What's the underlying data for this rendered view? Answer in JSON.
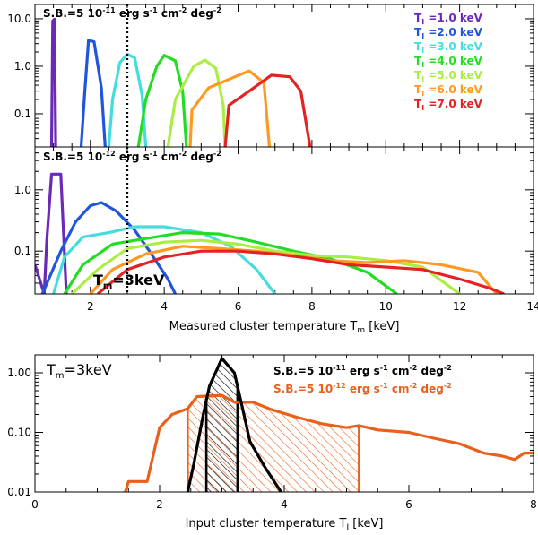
{
  "chart_data": [
    {
      "type": "line",
      "panel": "top",
      "annotation": "S.B.=5 10^-11 erg s^-1 cm^-2 deg^-2",
      "xlim": [
        0.5,
        14
      ],
      "yscale": "log",
      "ylim": [
        0.02,
        20
      ],
      "yticks": [
        {
          "v": 10,
          "label": "10.0"
        },
        {
          "v": 1,
          "label": "1.0"
        },
        {
          "v": 0.1,
          "label": "0.1"
        }
      ],
      "vline_x": 3,
      "legend_position": "top-right",
      "series": [
        {
          "name": "T_I =1.0 keV",
          "label": "T",
          "sub": "I",
          "suffix": " =1.0 keV",
          "color": "#6a2ab5",
          "points": [
            [
              0.95,
              0.02
            ],
            [
              0.98,
              9.0
            ],
            [
              1.03,
              9.8
            ],
            [
              1.06,
              0.02
            ]
          ]
        },
        {
          "name": "T_I =2.0 keV",
          "label": "T",
          "sub": "I",
          "suffix": " =2.0 keV",
          "color": "#2255dd",
          "points": [
            [
              1.75,
              0.02
            ],
            [
              1.85,
              0.3
            ],
            [
              1.95,
              3.5
            ],
            [
              2.1,
              3.3
            ],
            [
              2.3,
              0.35
            ],
            [
              2.4,
              0.02
            ]
          ]
        },
        {
          "name": "T_I =3.0 keV",
          "label": "T",
          "sub": "I",
          "suffix": " =3.0 keV",
          "color": "#44dddd",
          "points": [
            [
              2.5,
              0.02
            ],
            [
              2.6,
              0.2
            ],
            [
              2.8,
              1.2
            ],
            [
              3.0,
              1.8
            ],
            [
              3.2,
              1.5
            ],
            [
              3.4,
              0.25
            ],
            [
              3.5,
              0.02
            ]
          ]
        },
        {
          "name": "T_I =4.0 keV",
          "label": "T",
          "sub": "I",
          "suffix": " =4.0 keV",
          "color": "#22dd22",
          "points": [
            [
              3.3,
              0.02
            ],
            [
              3.5,
              0.2
            ],
            [
              3.8,
              1.0
            ],
            [
              4.0,
              1.7
            ],
            [
              4.3,
              1.3
            ],
            [
              4.5,
              0.3
            ],
            [
              4.6,
              0.02
            ]
          ]
        },
        {
          "name": "T_I =5.0 keV",
          "label": "T",
          "sub": "I",
          "suffix": " =5.0 keV",
          "color": "#aaee44",
          "points": [
            [
              4.1,
              0.02
            ],
            [
              4.3,
              0.2
            ],
            [
              4.8,
              1.0
            ],
            [
              5.1,
              1.35
            ],
            [
              5.4,
              0.9
            ],
            [
              5.6,
              0.15
            ],
            [
              5.65,
              0.02
            ]
          ]
        },
        {
          "name": "T_I =6.0 keV",
          "label": "T",
          "sub": "I",
          "suffix": " =6.0 keV",
          "color": "#ff9922",
          "points": [
            [
              4.7,
              0.02
            ],
            [
              4.75,
              0.12
            ],
            [
              5.2,
              0.35
            ],
            [
              5.8,
              0.55
            ],
            [
              6.3,
              0.8
            ],
            [
              6.7,
              0.45
            ],
            [
              6.85,
              0.02
            ]
          ]
        },
        {
          "name": "T_I =7.0 keV",
          "label": "T",
          "sub": "I",
          "suffix": " =7.0 keV",
          "color": "#e52222",
          "points": [
            [
              5.65,
              0.02
            ],
            [
              5.75,
              0.15
            ],
            [
              6.3,
              0.3
            ],
            [
              6.9,
              0.65
            ],
            [
              7.4,
              0.6
            ],
            [
              7.7,
              0.3
            ],
            [
              7.95,
              0.02
            ]
          ]
        }
      ]
    },
    {
      "type": "line",
      "panel": "middle",
      "annotation": "S.B.=5 10^-12 erg s^-1 cm^-2 deg^-2",
      "xlabel": "Measured cluster temperature T_m [keV]",
      "xlim": [
        0.5,
        14
      ],
      "xticks": [
        2,
        4,
        6,
        8,
        10,
        12,
        14
      ],
      "yscale": "log",
      "ylim": [
        0.02,
        5
      ],
      "yticks": [
        {
          "v": 1,
          "label": "1.0"
        },
        {
          "v": 0.1,
          "label": "0.1"
        }
      ],
      "vline_x": 3,
      "label": "T_m=3keV",
      "series": [
        {
          "name": "T_I =1.0 keV",
          "color": "#6a2ab5",
          "points": [
            [
              0.5,
              0.06
            ],
            [
              0.75,
              0.02
            ],
            [
              0.82,
              0.15
            ],
            [
              0.95,
              1.8
            ],
            [
              1.2,
              1.8
            ],
            [
              1.35,
              0.02
            ]
          ]
        },
        {
          "name": "T_I =2.0 keV",
          "color": "#2255dd",
          "points": [
            [
              0.7,
              0.02
            ],
            [
              1.2,
              0.1
            ],
            [
              1.6,
              0.3
            ],
            [
              2.0,
              0.55
            ],
            [
              2.3,
              0.62
            ],
            [
              2.7,
              0.45
            ],
            [
              3.2,
              0.22
            ],
            [
              3.6,
              0.1
            ],
            [
              4.1,
              0.035
            ],
            [
              4.3,
              0.02
            ]
          ]
        },
        {
          "name": "T_I =3.0 keV",
          "color": "#44dddd",
          "points": [
            [
              1.0,
              0.02
            ],
            [
              1.3,
              0.08
            ],
            [
              1.8,
              0.17
            ],
            [
              2.5,
              0.2
            ],
            [
              3.2,
              0.25
            ],
            [
              4.0,
              0.25
            ],
            [
              5.0,
              0.2
            ],
            [
              5.8,
              0.12
            ],
            [
              6.5,
              0.05
            ],
            [
              7.0,
              0.02
            ]
          ]
        },
        {
          "name": "T_I =4.0 keV",
          "color": "#22dd22",
          "points": [
            [
              1.3,
              0.02
            ],
            [
              1.8,
              0.06
            ],
            [
              2.6,
              0.13
            ],
            [
              3.5,
              0.16
            ],
            [
              4.5,
              0.2
            ],
            [
              5.5,
              0.19
            ],
            [
              6.5,
              0.14
            ],
            [
              7.5,
              0.1
            ],
            [
              8.5,
              0.075
            ],
            [
              9.5,
              0.045
            ],
            [
              10.3,
              0.02
            ]
          ]
        },
        {
          "name": "T_I =5.0 keV",
          "color": "#aaee44",
          "points": [
            [
              1.5,
              0.02
            ],
            [
              2.2,
              0.05
            ],
            [
              3.0,
              0.11
            ],
            [
              4.0,
              0.14
            ],
            [
              5.0,
              0.15
            ],
            [
              6.0,
              0.13
            ],
            [
              7.0,
              0.1
            ],
            [
              8.0,
              0.085
            ],
            [
              9.0,
              0.08
            ],
            [
              10.0,
              0.07
            ],
            [
              11.0,
              0.055
            ],
            [
              12.0,
              0.02
            ]
          ]
        },
        {
          "name": "T_I =6.0 keV",
          "color": "#ff9922",
          "points": [
            [
              2.0,
              0.02
            ],
            [
              2.6,
              0.05
            ],
            [
              3.5,
              0.09
            ],
            [
              4.5,
              0.12
            ],
            [
              5.5,
              0.11
            ],
            [
              6.5,
              0.1
            ],
            [
              7.5,
              0.085
            ],
            [
              8.5,
              0.07
            ],
            [
              9.5,
              0.065
            ],
            [
              10.5,
              0.07
            ],
            [
              11.5,
              0.06
            ],
            [
              12.5,
              0.045
            ],
            [
              13.0,
              0.02
            ]
          ]
        },
        {
          "name": "T_I =7.0 keV",
          "color": "#e52222",
          "points": [
            [
              2.2,
              0.02
            ],
            [
              3.0,
              0.05
            ],
            [
              4.0,
              0.08
            ],
            [
              5.0,
              0.1
            ],
            [
              6.0,
              0.1
            ],
            [
              7.0,
              0.09
            ],
            [
              8.0,
              0.075
            ],
            [
              9.0,
              0.06
            ],
            [
              10.0,
              0.055
            ],
            [
              11.0,
              0.05
            ],
            [
              12.0,
              0.035
            ],
            [
              12.8,
              0.025
            ],
            [
              13.2,
              0.02
            ]
          ]
        }
      ]
    },
    {
      "type": "area",
      "panel": "bottom",
      "title": "T_m=3keV",
      "xlabel": "Input cluster temperature T_I [keV]",
      "xlim": [
        0,
        8
      ],
      "xticks": [
        0,
        2,
        4,
        6,
        8
      ],
      "yscale": "log",
      "ylim": [
        0.01,
        2
      ],
      "yticks": [
        {
          "v": 1,
          "label": "1.00"
        },
        {
          "v": 0.1,
          "label": "0.10"
        },
        {
          "v": 0.01,
          "label": "0.01"
        }
      ],
      "legend_position": "top-right",
      "series": [
        {
          "name": "S.B.=5 10^-11 erg s^-1 cm^-2 deg^-2",
          "color": "#000000",
          "hatch_x": [
            2.75,
            3.25
          ],
          "points": [
            [
              2.45,
              0.01
            ],
            [
              2.55,
              0.03
            ],
            [
              2.7,
              0.2
            ],
            [
              2.8,
              0.6
            ],
            [
              3.0,
              1.75
            ],
            [
              3.2,
              1.0
            ],
            [
              3.3,
              0.35
            ],
            [
              3.45,
              0.07
            ],
            [
              3.7,
              0.025
            ],
            [
              3.9,
              0.012
            ],
            [
              3.95,
              0.01
            ]
          ]
        },
        {
          "name": "S.B.=5 10^-12 erg s^-1 cm^-2 deg^-2",
          "color": "#e8601c",
          "hatch_x": [
            2.45,
            5.2
          ],
          "points": [
            [
              1.45,
              0.01
            ],
            [
              1.5,
              0.015
            ],
            [
              1.8,
              0.015
            ],
            [
              2.0,
              0.12
            ],
            [
              2.2,
              0.2
            ],
            [
              2.45,
              0.25
            ],
            [
              2.6,
              0.4
            ],
            [
              3.0,
              0.42
            ],
            [
              3.2,
              0.32
            ],
            [
              3.5,
              0.32
            ],
            [
              3.8,
              0.24
            ],
            [
              4.2,
              0.18
            ],
            [
              4.6,
              0.14
            ],
            [
              5.0,
              0.12
            ],
            [
              5.2,
              0.13
            ],
            [
              5.5,
              0.11
            ],
            [
              6.0,
              0.1
            ],
            [
              6.4,
              0.08
            ],
            [
              6.8,
              0.065
            ],
            [
              7.2,
              0.045
            ],
            [
              7.5,
              0.04
            ],
            [
              7.7,
              0.035
            ],
            [
              7.85,
              0.045
            ],
            [
              8.0,
              0.045
            ]
          ]
        }
      ]
    }
  ],
  "labels": {
    "top_annotation": {
      "pre": "S.B.=5 10",
      "exp": "-11",
      "mid": " erg s",
      "exp2": "-1",
      "mid2": " cm",
      "exp3": "-2",
      "mid3": " deg",
      "exp4": "-2"
    },
    "mid_annotation": {
      "pre": "S.B.=5 10",
      "exp": "-12",
      "mid": " erg s",
      "exp2": "-1",
      "mid2": " cm",
      "exp3": "-2",
      "mid3": " deg",
      "exp4": "-2"
    },
    "mid_tm": {
      "pre": "T",
      "sub": "m",
      "post": "=3keV"
    },
    "mid_xlabel": {
      "pre": "Measured cluster temperature T",
      "sub": "m",
      "post": " [keV]"
    },
    "bottom_tm": {
      "pre": "T",
      "sub": "m",
      "post": "=3keV"
    },
    "bottom_xlabel": {
      "pre": "Input cluster temperature T",
      "sub": "I",
      "post": " [keV]"
    },
    "bottom_legend1": {
      "pre": "S.B.=5 10",
      "exp": "-11",
      "mid": " erg s",
      "exp2": "-1",
      "mid2": " cm",
      "exp3": "-2",
      "mid3": " deg",
      "exp4": "-2"
    },
    "bottom_legend2": {
      "pre": "S.B.=5 10",
      "exp": "-12",
      "mid": " erg s",
      "exp2": "-1",
      "mid2": " cm",
      "exp3": "-2",
      "mid3": " deg",
      "exp4": "-2"
    }
  }
}
